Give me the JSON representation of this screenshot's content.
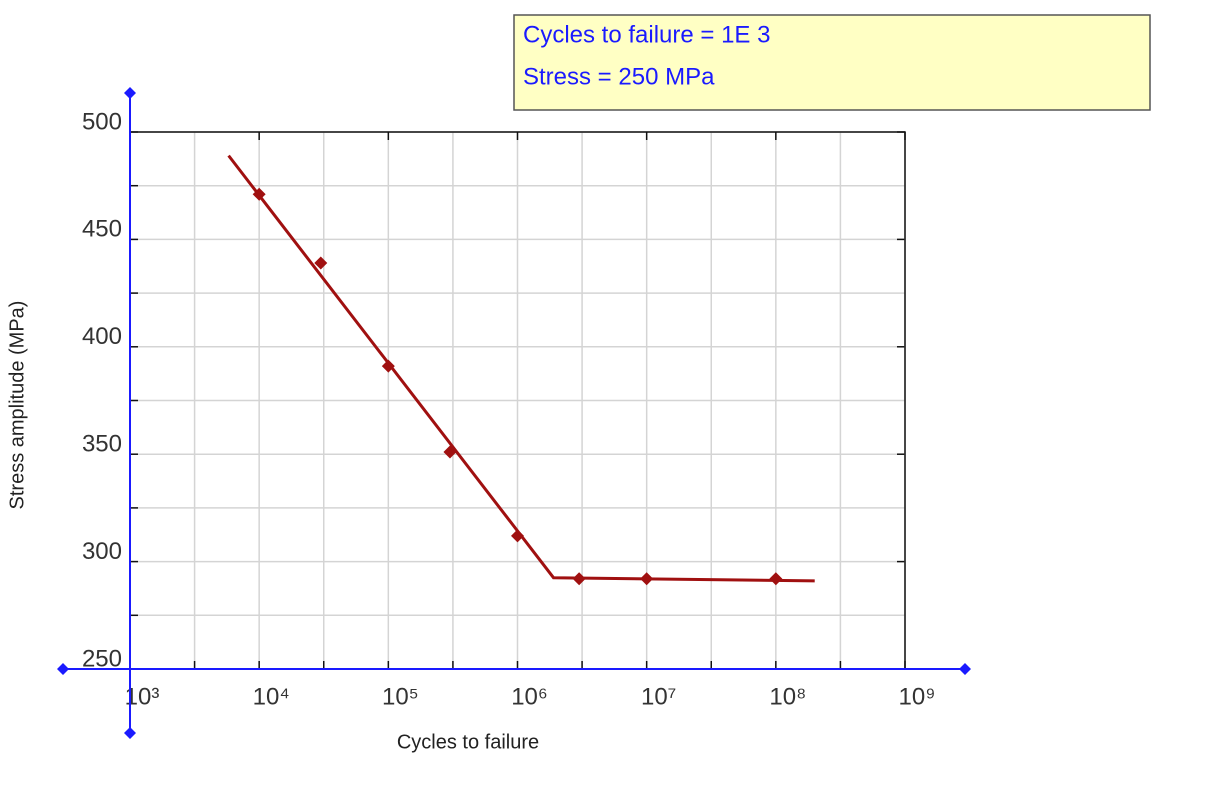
{
  "chart_data": {
    "type": "scatter",
    "x_label": "Cycles to failure",
    "y_label": "Stress amplitude (MPa)",
    "annotations": [
      "Cycles to failure = 1E 3",
      "Stress = 250 MPa"
    ],
    "xscale": "log",
    "xlim": [
      1000,
      1000000000
    ],
    "ylim": [
      250,
      500
    ],
    "xticks": [
      {
        "value": 1000,
        "label": "10³"
      },
      {
        "value": 10000,
        "label": "10⁴"
      },
      {
        "value": 100000,
        "label": "10⁵"
      },
      {
        "value": 1000000,
        "label": "10⁶"
      },
      {
        "value": 10000000,
        "label": "10⁷"
      },
      {
        "value": 100000000,
        "label": "10⁸"
      },
      {
        "value": 1000000000,
        "label": "10⁹"
      }
    ],
    "yticks": [
      250,
      300,
      350,
      400,
      450,
      500
    ],
    "grid": true,
    "series": [
      {
        "mode": "markers",
        "color": "#a01010",
        "x": [
          10000,
          30000,
          100000,
          300000,
          1000000,
          3000000,
          10000000,
          100000000
        ],
        "values": [
          471,
          439,
          391,
          351,
          312,
          292,
          292,
          292
        ]
      },
      {
        "mode": "line",
        "color": "#a01010",
        "x": [
          5800,
          1900000,
          200000000
        ],
        "values": [
          489,
          292.5,
          291
        ]
      }
    ]
  }
}
